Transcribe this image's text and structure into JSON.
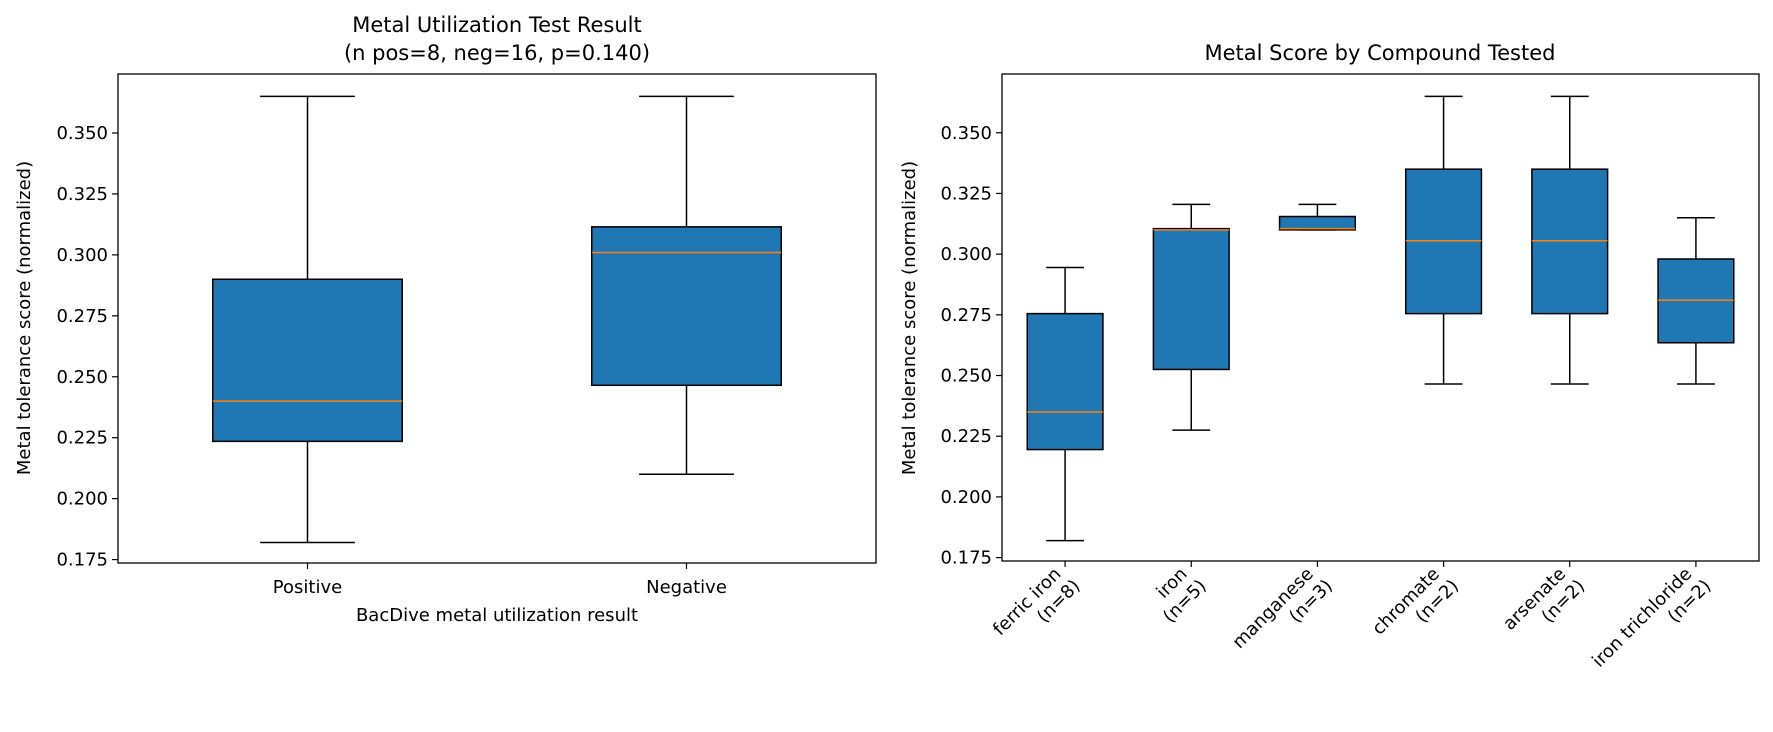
{
  "colors": {
    "box_fill": "#1f77b4",
    "median": "#ff7f0e",
    "line": "#000000"
  },
  "chart_data": [
    {
      "type": "boxplot",
      "title": "Metal Utilization Test Result",
      "subtitle": "(n pos=8, neg=16, p=0.140)",
      "xlabel": "BacDive metal utilization result",
      "ylabel": "Metal tolerance score (normalized)",
      "ylim": [
        0.1736,
        0.3742
      ],
      "yticks": [
        "0.175",
        "0.200",
        "0.225",
        "0.250",
        "0.275",
        "0.300",
        "0.325",
        "0.350"
      ],
      "grid": false,
      "categories": [
        [
          "Positive"
        ],
        [
          "Negative"
        ]
      ],
      "boxes": [
        {
          "whislo": 0.182,
          "q1": 0.2235,
          "med": 0.24,
          "q3": 0.29,
          "whishi": 0.365
        },
        {
          "whislo": 0.21,
          "q1": 0.2465,
          "med": 0.301,
          "q3": 0.3115,
          "whishi": 0.365
        }
      ]
    },
    {
      "type": "boxplot",
      "title": "Metal Score by Compound Tested",
      "subtitle": "",
      "xlabel": "",
      "ylabel": "Metal tolerance score (normalized)",
      "ylim": [
        0.1736,
        0.3742
      ],
      "yticks": [
        "0.175",
        "0.200",
        "0.225",
        "0.250",
        "0.275",
        "0.300",
        "0.325",
        "0.350"
      ],
      "grid": false,
      "xtick_rotation": 45,
      "categories": [
        [
          "ferric iron",
          "(n=8)"
        ],
        [
          "iron",
          "(n=5)"
        ],
        [
          "manganese",
          "(n=3)"
        ],
        [
          "chromate",
          "(n=2)"
        ],
        [
          "arsenate",
          "(n=2)"
        ],
        [
          "iron trichloride",
          "(n=2)"
        ]
      ],
      "boxes": [
        {
          "whislo": 0.182,
          "q1": 0.2195,
          "med": 0.235,
          "q3": 0.2755,
          "whishi": 0.2945
        },
        {
          "whislo": 0.2275,
          "q1": 0.2525,
          "med": 0.31,
          "q3": 0.3105,
          "whishi": 0.3205
        },
        {
          "whislo": 0.31,
          "q1": 0.31,
          "med": 0.3105,
          "q3": 0.3155,
          "whishi": 0.3205
        },
        {
          "whislo": 0.2465,
          "q1": 0.2755,
          "med": 0.3055,
          "q3": 0.335,
          "whishi": 0.365
        },
        {
          "whislo": 0.2465,
          "q1": 0.2755,
          "med": 0.3055,
          "q3": 0.335,
          "whishi": 0.365
        },
        {
          "whislo": 0.2465,
          "q1": 0.2635,
          "med": 0.281,
          "q3": 0.298,
          "whishi": 0.315
        }
      ]
    }
  ]
}
